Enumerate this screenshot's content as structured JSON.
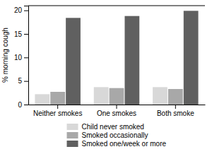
{
  "chart_data": {
    "type": "bar",
    "categories": [
      "Neither smokes",
      "One smokes",
      "Both smoke"
    ],
    "series": [
      {
        "name": "Child never smoked",
        "color": "#d8d8d8",
        "values": [
          2.2,
          3.7,
          3.7
        ]
      },
      {
        "name": "Smoked occasionally",
        "color": "#a8a8a8",
        "values": [
          2.7,
          3.5,
          3.3
        ]
      },
      {
        "name": "Smoked one/week or more",
        "color": "#606060",
        "values": [
          18.4,
          18.8,
          19.9
        ]
      }
    ],
    "ylabel": "% morning cough",
    "ylim": [
      0,
      21
    ],
    "yticks": [
      0,
      5,
      10,
      15,
      20
    ],
    "grid": false,
    "legend": "bottom"
  }
}
